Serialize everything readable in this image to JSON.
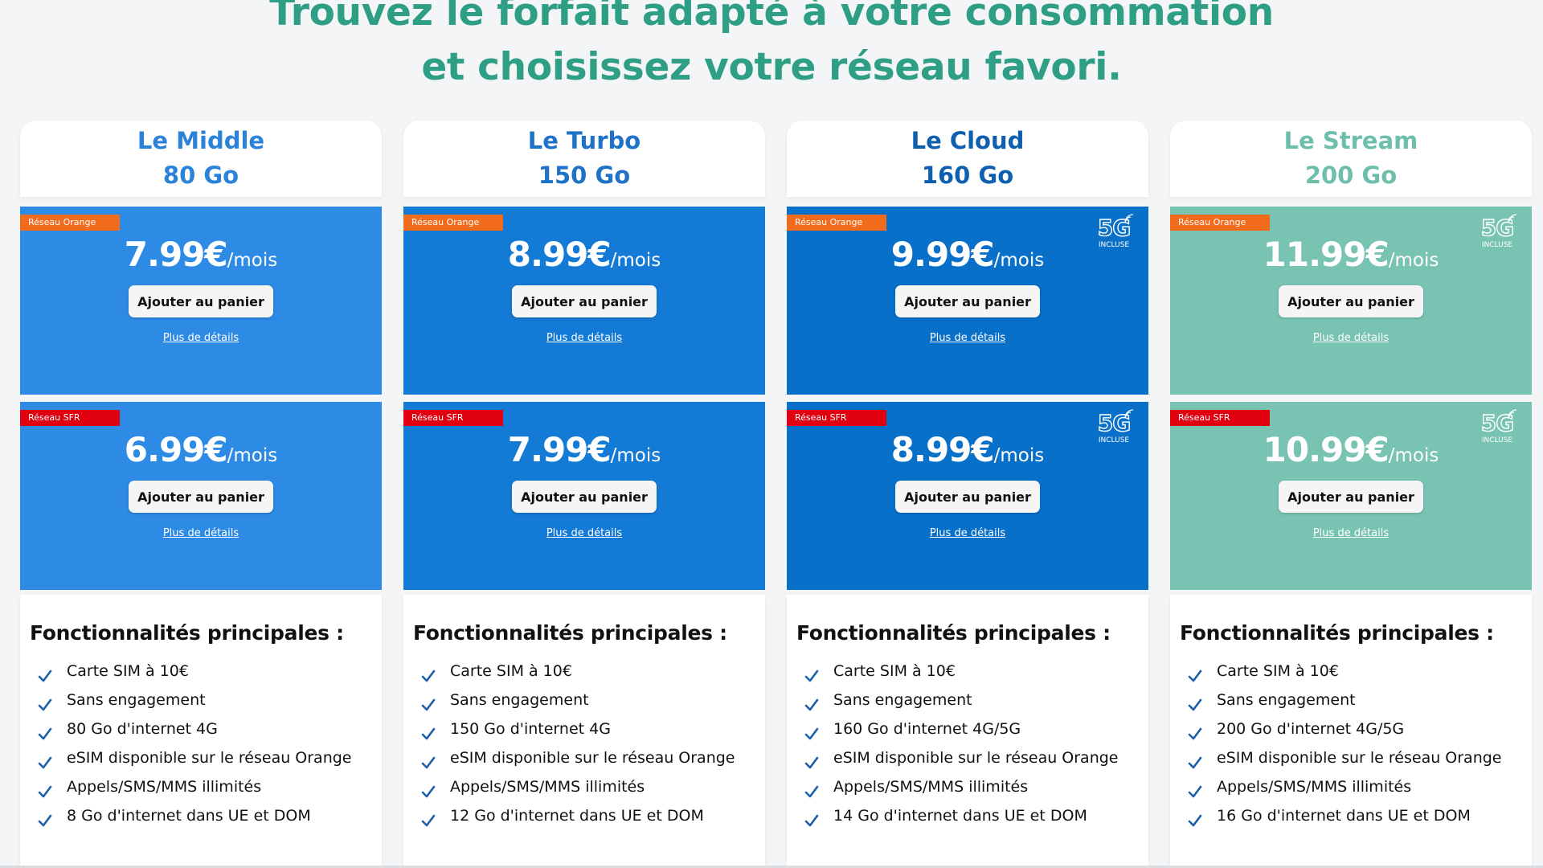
{
  "headline": {
    "line1": "Trouvez le forfait adapté à votre consommation",
    "line2": "et choisissez votre réseau favori."
  },
  "plans": [
    {
      "name": "Le Middle",
      "data": "80 Go",
      "title_color": "#2a83d9",
      "offer_color": "#2d8ae5",
      "offers": [
        {
          "network": "Réseau Orange",
          "price": "7.99€",
          "period": "/mois",
          "five_g": false,
          "five_g_label": "",
          "five_g_sub": ""
        },
        {
          "network": "Réseau SFR",
          "price": "6.99€",
          "period": "/mois",
          "five_g": false,
          "five_g_label": "",
          "five_g_sub": ""
        }
      ],
      "features_title": "Fonctionnalités principales :",
      "features": [
        "Carte SIM à 10€",
        "Sans engagement",
        "80 Go d'internet 4G",
        "eSIM disponible sur le réseau Orange",
        "Appels/SMS/MMS illimités",
        "8 Go d'internet dans UE et DOM"
      ]
    },
    {
      "name": "Le Turbo",
      "data": "150 Go",
      "title_color": "#1e72c7",
      "offer_color": "#137ad6",
      "offers": [
        {
          "network": "Réseau Orange",
          "price": "8.99€",
          "period": "/mois",
          "five_g": false,
          "five_g_label": "",
          "five_g_sub": ""
        },
        {
          "network": "Réseau SFR",
          "price": "7.99€",
          "period": "/mois",
          "five_g": false,
          "five_g_label": "",
          "five_g_sub": ""
        }
      ],
      "features_title": "Fonctionnalités principales :",
      "features": [
        "Carte SIM à 10€",
        "Sans engagement",
        "150 Go d'internet 4G",
        "eSIM disponible sur le réseau Orange",
        "Appels/SMS/MMS illimités",
        "12 Go d'internet dans UE et DOM"
      ]
    },
    {
      "name": "Le Cloud",
      "data": "160 Go",
      "title_color": "#0f5fb0",
      "offer_color": "#0870c9",
      "offers": [
        {
          "network": "Réseau Orange",
          "price": "9.99€",
          "period": "/mois",
          "five_g": true,
          "five_g_label": "5G",
          "five_g_sub": "INCLUSE"
        },
        {
          "network": "Réseau SFR",
          "price": "8.99€",
          "period": "/mois",
          "five_g": true,
          "five_g_label": "5G",
          "five_g_sub": "INCLUSE"
        }
      ],
      "features_title": "Fonctionnalités principales :",
      "features": [
        "Carte SIM à 10€",
        "Sans engagement",
        "160 Go d'internet 4G/5G",
        "eSIM disponible sur le réseau Orange",
        "Appels/SMS/MMS illimités",
        "14 Go d'internet dans UE et DOM"
      ]
    },
    {
      "name": "Le Stream",
      "data": "200 Go",
      "title_color": "#6dbfac",
      "offer_color": "#79c3b3",
      "offers": [
        {
          "network": "Réseau Orange",
          "price": "11.99€",
          "period": "/mois",
          "five_g": true,
          "five_g_label": "5G",
          "five_g_sub": "INCLUSE"
        },
        {
          "network": "Réseau SFR",
          "price": "10.99€",
          "period": "/mois",
          "five_g": true,
          "five_g_label": "5G",
          "five_g_sub": "INCLUSE"
        }
      ],
      "features_title": "Fonctionnalités principales :",
      "features": [
        "Carte SIM à 10€",
        "Sans engagement",
        "200 Go d'internet 4G/5G",
        "eSIM disponible sur le réseau Orange",
        "Appels/SMS/MMS illimités",
        "16 Go d'internet dans UE et DOM"
      ]
    }
  ],
  "labels": {
    "add_to_cart": "Ajouter au panier",
    "more_details": "Plus de détails"
  },
  "colors": {
    "headline": "#2e9e84",
    "check": "#1a5fa8",
    "orange_tag": "#f26a1b",
    "sfr_tag": "#e1000f"
  },
  "icons": {
    "check": "checkmark-icon",
    "five_g": "5g-signal-icon"
  }
}
